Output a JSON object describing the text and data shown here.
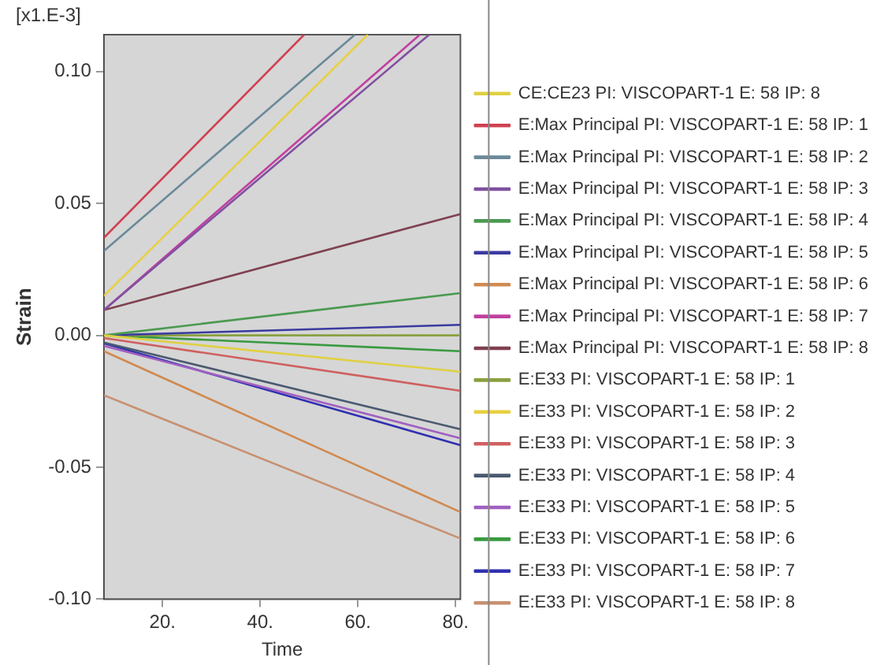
{
  "chart_data": {
    "type": "line",
    "xlabel": "Time",
    "ylabel": "Strain",
    "annotations": [
      "[x1.E-3]"
    ],
    "xlim": [
      8,
      81
    ],
    "ylim": [
      -0.1,
      0.114
    ],
    "xticks": [
      {
        "value": 20,
        "label": "20."
      },
      {
        "value": 40,
        "label": "40."
      },
      {
        "value": 60,
        "label": "60."
      },
      {
        "value": 80,
        "label": "80."
      }
    ],
    "yticks": [
      {
        "value": -0.1,
        "label": "-0.10"
      },
      -0.05,
      {
        "value": 0,
        "label": "0.00"
      },
      0.05,
      {
        "value": 0.1,
        "label": "0.10"
      }
    ],
    "grid": false,
    "legend": "right",
    "marker": "none",
    "series": [
      {
        "name": "CE:CE23 PI: VISCOPART-1 E: 58 IP: 8",
        "color": "#e0d040",
        "x": [
          8,
          81
        ],
        "values": [
          0,
          -0.0138
        ]
      },
      {
        "name": "E:Max Principal PI: VISCOPART-1 E: 58 IP: 1",
        "color": "#d04050",
        "x": [
          8,
          49
        ],
        "values": [
          0.037,
          0.114
        ]
      },
      {
        "name": "E:Max Principal PI: VISCOPART-1 E: 58 IP: 2",
        "color": "#6a8a9a",
        "x": [
          8,
          59.4
        ],
        "values": [
          0.032,
          0.114
        ]
      },
      {
        "name": "E:Max Principal PI: VISCOPART-1 E: 58 IP: 3",
        "color": "#8050a0",
        "x": [
          8,
          74.6
        ],
        "values": [
          0.0096,
          0.114
        ]
      },
      {
        "name": "E:Max Principal PI: VISCOPART-1 E: 58 IP: 4",
        "color": "#4a9a50",
        "x": [
          8,
          81
        ],
        "values": [
          0,
          0.016
        ]
      },
      {
        "name": "E:Max Principal PI: VISCOPART-1 E: 58 IP: 5",
        "color": "#3a3aa0",
        "x": [
          8,
          81
        ],
        "values": [
          0,
          0.004
        ]
      },
      {
        "name": "E:Max Principal PI: VISCOPART-1 E: 58 IP: 6",
        "color": "#d08a50",
        "x": [
          8,
          81
        ],
        "values": [
          -0.006,
          -0.067
        ]
      },
      {
        "name": "E:Max Principal PI: VISCOPART-1 E: 58 IP: 7",
        "color": "#c040a0",
        "x": [
          8,
          72.7
        ],
        "values": [
          0.0096,
          0.114
        ]
      },
      {
        "name": "E:Max Principal PI: VISCOPART-1 E: 58 IP: 8",
        "color": "#804050",
        "x": [
          8,
          81
        ],
        "values": [
          0.0096,
          0.046
        ]
      },
      {
        "name": "E:E33 PI: VISCOPART-1 E: 58 IP: 1",
        "color": "#8aa040",
        "x": [
          8,
          81
        ],
        "values": [
          0,
          0
        ]
      },
      {
        "name": "E:E33 PI: VISCOPART-1 E: 58 IP: 2",
        "color": "#e8d040",
        "x": [
          8,
          62
        ],
        "values": [
          0.015,
          0.114
        ]
      },
      {
        "name": "E:E33 PI: VISCOPART-1 E: 58 IP: 3",
        "color": "#d06060",
        "x": [
          8,
          81
        ],
        "values": [
          -0.001,
          -0.021
        ]
      },
      {
        "name": "E:E33 PI: VISCOPART-1 E: 58 IP: 4",
        "color": "#4a5a70",
        "x": [
          8,
          81
        ],
        "values": [
          -0.0027,
          -0.0356
        ]
      },
      {
        "name": "E:E33 PI: VISCOPART-1 E: 58 IP: 5",
        "color": "#a060c0",
        "x": [
          8,
          81
        ],
        "values": [
          -0.004,
          -0.039
        ]
      },
      {
        "name": "E:E33 PI: VISCOPART-1 E: 58 IP: 6",
        "color": "#3a9a40",
        "x": [
          8,
          81
        ],
        "values": [
          0,
          -0.006
        ]
      },
      {
        "name": "E:E33 PI: VISCOPART-1 E: 58 IP: 7",
        "color": "#3030b0",
        "x": [
          8,
          81
        ],
        "values": [
          -0.003,
          -0.0416
        ]
      },
      {
        "name": "E:E33 PI: VISCOPART-1 E: 58 IP: 8",
        "color": "#c89070",
        "x": [
          8,
          81
        ],
        "values": [
          -0.0227,
          -0.077
        ]
      }
    ]
  }
}
